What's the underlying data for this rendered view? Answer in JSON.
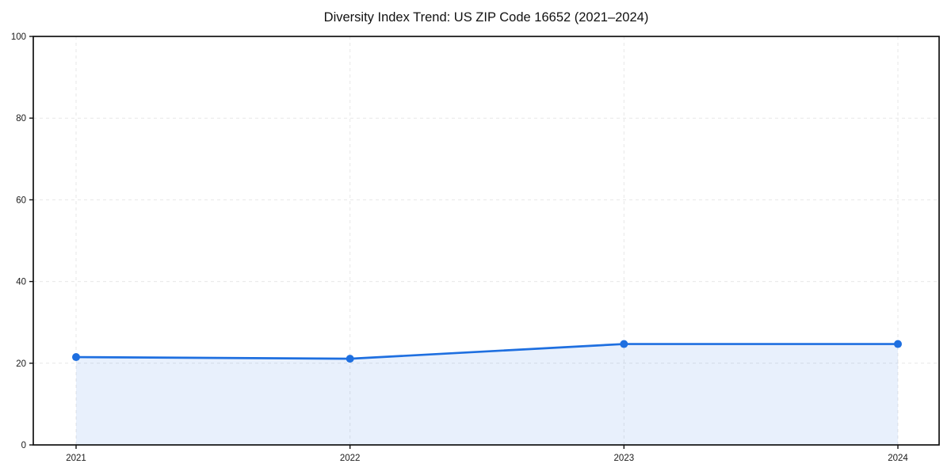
{
  "chart_data": {
    "type": "area",
    "title": "Diversity Index Trend: US ZIP Code 16652 (2021–2024)",
    "x": [
      2021,
      2022,
      2023,
      2024
    ],
    "xtick_labels": [
      "2021",
      "2022",
      "2023",
      "2024"
    ],
    "series": [
      {
        "name": "Diversity Index",
        "values": [
          21.5,
          21.1,
          24.7,
          24.7
        ]
      }
    ],
    "xlabel": "",
    "ylabel": "",
    "ylim": [
      0,
      100
    ],
    "yticks": [
      0,
      20,
      40,
      60,
      80,
      100
    ],
    "ytick_labels": [
      "0",
      "20",
      "40",
      "60",
      "80",
      "100"
    ],
    "grid": "dashed",
    "legend": "none",
    "line_color": "#1e6fe0",
    "marker_color": "#1e6fe0",
    "fill_color": "#1e6fe0",
    "fill_opacity": 0.1,
    "grid_color": "#e7e7e7",
    "spine_color": "#111111",
    "tick_label_color": "#1a1a1a",
    "background_color": "#ffffff"
  }
}
